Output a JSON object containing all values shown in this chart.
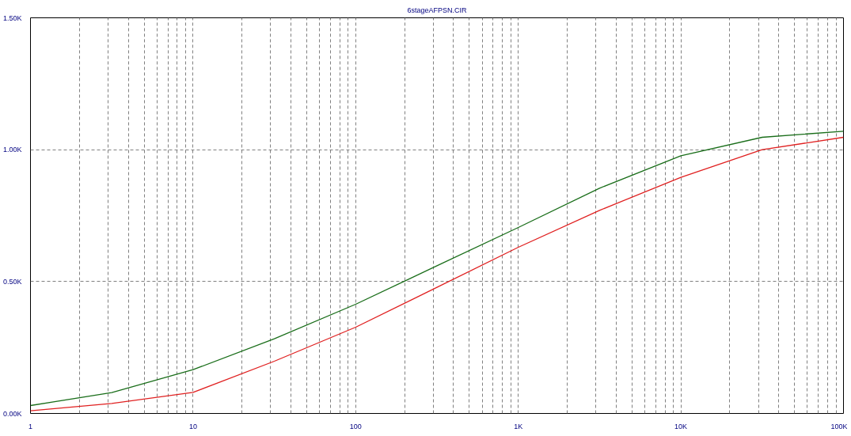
{
  "chart_data": {
    "type": "line",
    "subtitle": "6stageAFPSN.CIR",
    "x": [
      1,
      3.16,
      10,
      31.6,
      100,
      316,
      1000,
      3160,
      10000,
      31600,
      100000
    ],
    "series": [
      {
        "color": "#1a6e1a",
        "values": [
          30,
          79,
          166,
          283,
          414,
          560,
          705,
          854,
          977,
          1047,
          1070
        ]
      },
      {
        "color": "#e02020",
        "values": [
          10,
          38,
          80,
          198,
          327,
          478,
          630,
          770,
          895,
          1000,
          1047
        ]
      }
    ],
    "log": "x",
    "xlim": [
      1,
      100000
    ],
    "ylim": [
      0,
      1500
    ],
    "xticks": [
      1,
      {
        "value": 2,
        "label": null
      },
      {
        "value": 3,
        "label": null
      },
      {
        "value": 4,
        "label": null
      },
      {
        "value": 5,
        "label": null
      },
      {
        "value": 6,
        "label": null
      },
      {
        "value": 7,
        "label": null
      },
      {
        "value": 8,
        "label": null
      },
      {
        "value": 9,
        "label": null
      },
      10,
      {
        "value": 20,
        "label": null
      },
      {
        "value": 30,
        "label": null
      },
      {
        "value": 40,
        "label": null
      },
      {
        "value": 50,
        "label": null
      },
      {
        "value": 60,
        "label": null
      },
      {
        "value": 70,
        "label": null
      },
      {
        "value": 80,
        "label": null
      },
      {
        "value": 90,
        "label": null
      },
      100,
      {
        "value": 200,
        "label": null
      },
      {
        "value": 300,
        "label": null
      },
      {
        "value": 400,
        "label": null
      },
      {
        "value": 500,
        "label": null
      },
      {
        "value": 600,
        "label": null
      },
      {
        "value": 700,
        "label": null
      },
      {
        "value": 800,
        "label": null
      },
      {
        "value": 900,
        "label": null
      },
      {
        "value": 1000,
        "label": "1K"
      },
      {
        "value": 2000,
        "label": null
      },
      {
        "value": 3000,
        "label": null
      },
      {
        "value": 4000,
        "label": null
      },
      {
        "value": 5000,
        "label": null
      },
      {
        "value": 6000,
        "label": null
      },
      {
        "value": 7000,
        "label": null
      },
      {
        "value": 8000,
        "label": null
      },
      {
        "value": 9000,
        "label": null
      },
      {
        "value": 10000,
        "label": "10K"
      },
      {
        "value": 20000,
        "label": null
      },
      {
        "value": 30000,
        "label": null
      },
      {
        "value": 40000,
        "label": null
      },
      {
        "value": 50000,
        "label": null
      },
      {
        "value": 60000,
        "label": null
      },
      {
        "value": 70000,
        "label": null
      },
      {
        "value": 80000,
        "label": null
      },
      {
        "value": 90000,
        "label": null
      },
      {
        "value": 100000,
        "label": "100K"
      }
    ],
    "yticks": [
      {
        "value": 0,
        "label": "0.00K"
      },
      {
        "value": 500,
        "label": "0.50K"
      },
      {
        "value": 1000,
        "label": "1.00K"
      },
      {
        "value": 1500,
        "label": "1.50K"
      }
    ],
    "grid": true,
    "line_style": "solid",
    "marker": "none"
  }
}
